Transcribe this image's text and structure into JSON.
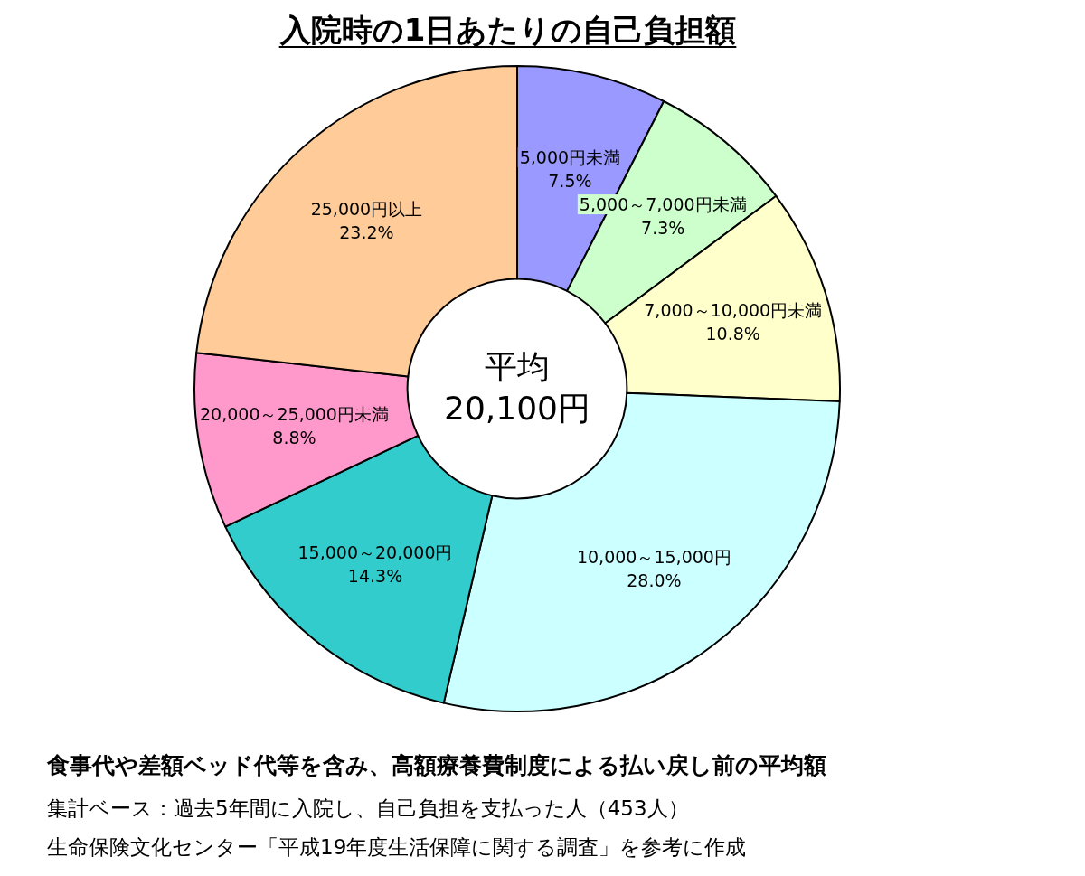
{
  "chart_data": {
    "type": "donut",
    "title": "入院時の1日あたりの自己負担額",
    "categories": [
      "5,000円未満",
      "5,000～7,000円未満",
      "7,000～10,000円未満",
      "10,000～15,000円",
      "15,000～20,000円",
      "20,000～25,000円未満",
      "25,000円以上"
    ],
    "values": [
      7.5,
      7.3,
      10.8,
      28.0,
      14.3,
      8.8,
      23.2
    ],
    "colors": [
      "#9999ff",
      "#ccffcc",
      "#ffffcc",
      "#ccffff",
      "#33cccc",
      "#ff99cc",
      "#ffcc99"
    ],
    "value_labels": [
      "7.5%",
      "7.3%",
      "10.8%",
      "28.0%",
      "14.3%",
      "8.8%",
      "23.2%"
    ],
    "annotations": [
      "平均",
      "20,100円",
      "食事代や差額ベッド代等を含み、高額療養費制度による払い戻し前の平均額",
      "集計ベース：過去5年間に入院し、自己負担を支払った人（453人）",
      "生命保険文化センター「平成19年度生活保障に関する調査」を参考に作成"
    ]
  }
}
